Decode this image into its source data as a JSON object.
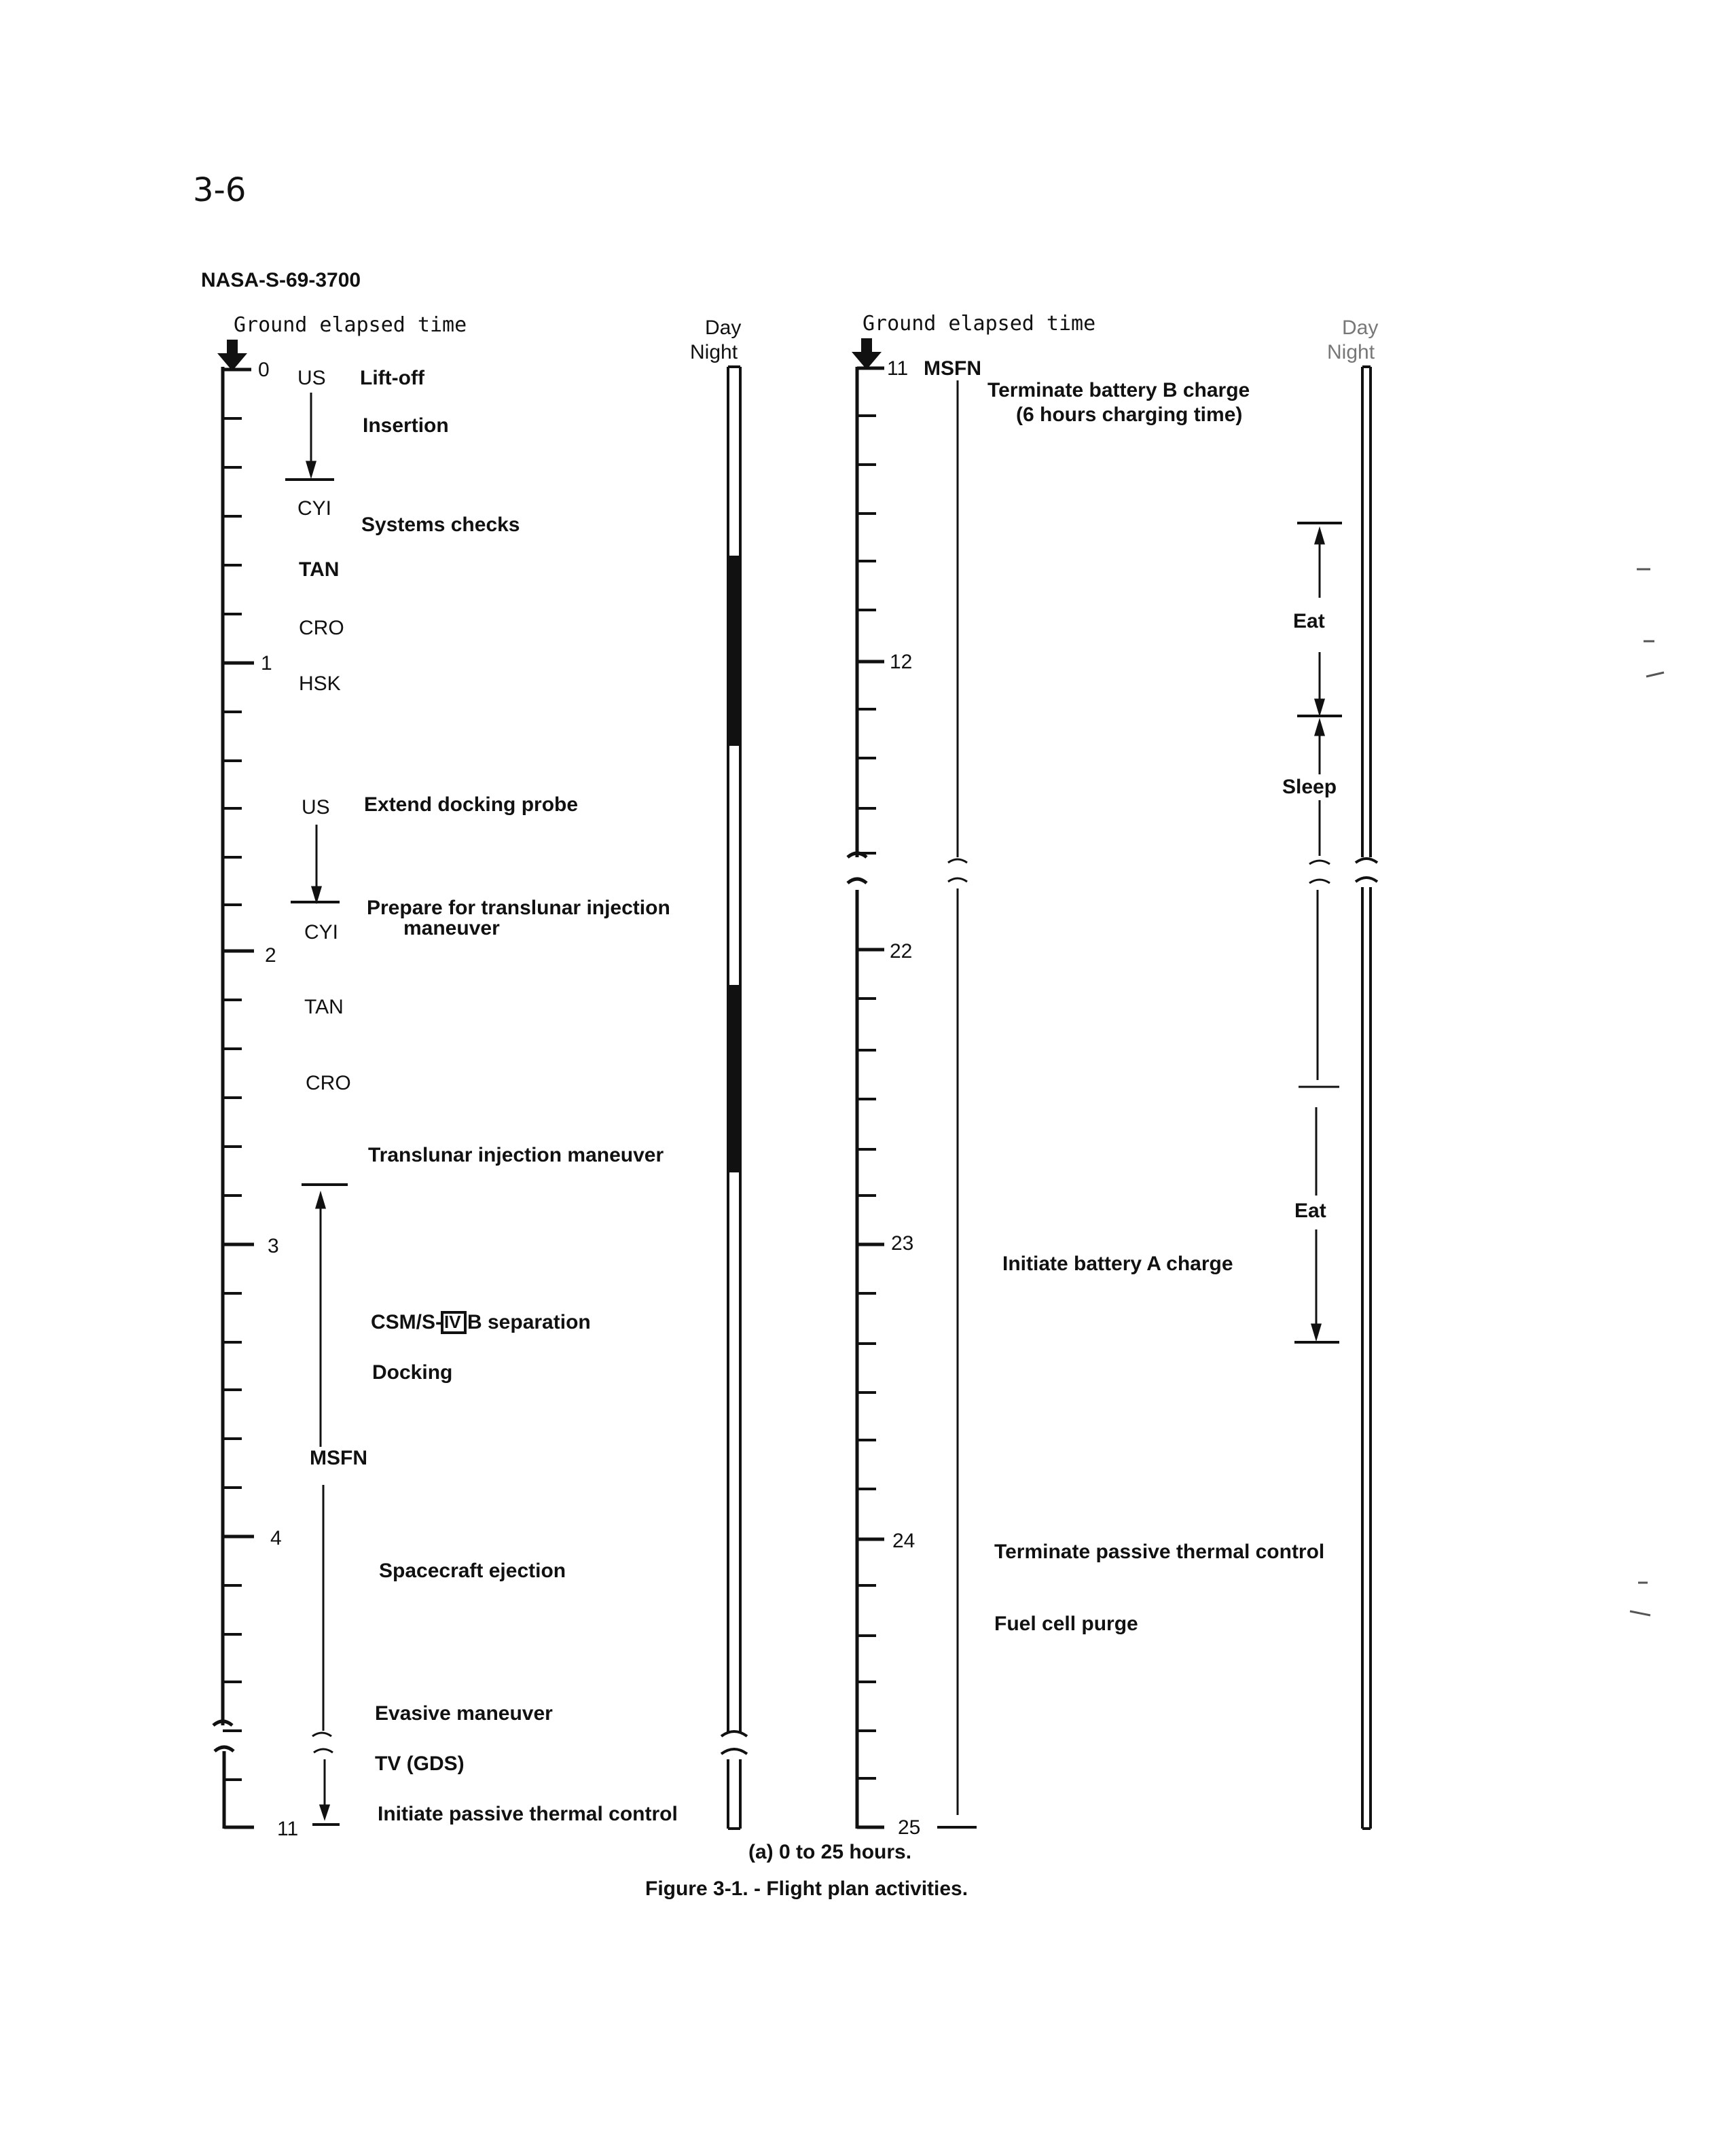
{
  "page_number": "3-6",
  "figure_id": "NASA-S-69-3700",
  "left_column": {
    "header": "Ground elapsed time",
    "day_night": {
      "day": "Day",
      "night": "Night"
    },
    "hour_labels": [
      "0",
      "1",
      "2",
      "3",
      "4",
      "11"
    ],
    "stations": [
      "US",
      "CYI",
      "TAN",
      "CRO",
      "HSK",
      "US",
      "CYI",
      "TAN",
      "CRO",
      "MSFN"
    ],
    "events": [
      "Lift-off",
      "Insertion",
      "Systems checks",
      "Extend docking probe",
      "Prepare for translunar injection",
      "maneuver",
      "Translunar injection maneuver",
      "CSM/S-",
      "B separation",
      "Docking",
      "Spacecraft ejection",
      "Evasive maneuver",
      "TV (GDS)",
      "Initiate passive thermal control"
    ],
    "roman_numeral": "IV"
  },
  "right_column": {
    "header": "Ground elapsed time",
    "day_night": {
      "day": "Day",
      "night": "Night"
    },
    "hour_labels": [
      "11",
      "12",
      "22",
      "23",
      "24",
      "25"
    ],
    "stations": [
      "MSFN"
    ],
    "events": [
      "Terminate battery B charge",
      "(6 hours charging time)",
      "Initiate battery A charge",
      "Terminate passive thermal control",
      "Fuel cell purge"
    ],
    "crew_activities": [
      "Eat",
      "Sleep",
      "Eat"
    ]
  },
  "caption": {
    "subcaption": "(a)  0 to 25 hours.",
    "title": "Figure 3-1. -  Flight plan activities."
  }
}
